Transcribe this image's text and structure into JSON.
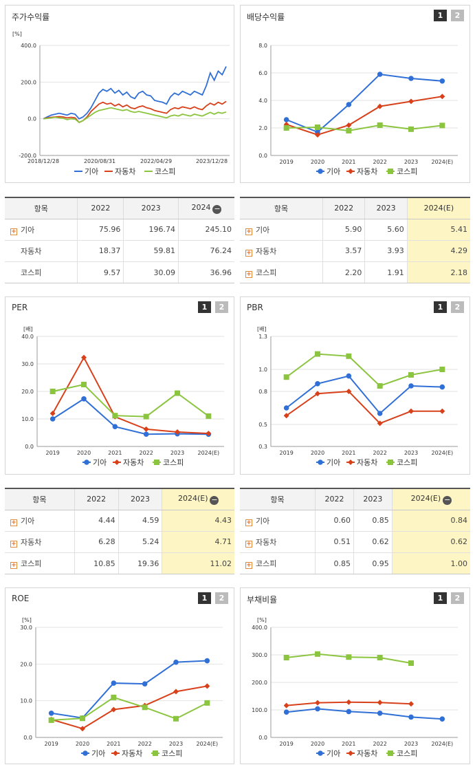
{
  "legend": {
    "kia": "기아",
    "auto": "자동차",
    "kospi": "코스피"
  },
  "colors": {
    "kia": "#2f6fd6",
    "auto": "#d8401a",
    "kospi": "#8bc53f"
  },
  "pager": [
    "1",
    "2"
  ],
  "stock_return": {
    "title": "주가수익률",
    "unit": "[%]",
    "yticks": [
      "400.0",
      "200.0",
      "0.0",
      "-200.0"
    ],
    "xticks": [
      "2018/12/28",
      "2020/08/31",
      "2022/04/29",
      "2023/12/28"
    ],
    "table": {
      "header": [
        "항목",
        "2022",
        "2023",
        "2024"
      ],
      "rows": [
        {
          "name": "기아",
          "plus": true,
          "values": [
            "75.96",
            "196.74",
            "245.10"
          ]
        },
        {
          "name": "자동차",
          "plus": false,
          "values": [
            "18.37",
            "59.81",
            "76.24"
          ]
        },
        {
          "name": "코스피",
          "plus": false,
          "values": [
            "9.57",
            "30.09",
            "36.96"
          ]
        }
      ]
    }
  },
  "dividend": {
    "title": "배당수익률",
    "table": {
      "header": [
        "항목",
        "2022",
        "2023",
        "2024(E)"
      ],
      "rows": [
        {
          "name": "기아",
          "values": [
            "5.90",
            "5.60",
            "5.41"
          ]
        },
        {
          "name": "자동차",
          "values": [
            "3.57",
            "3.93",
            "4.29"
          ]
        },
        {
          "name": "코스피",
          "values": [
            "2.20",
            "1.91",
            "2.18"
          ]
        }
      ]
    }
  },
  "per": {
    "title": "PER",
    "table": {
      "header": [
        "항목",
        "2022",
        "2023",
        "2024(E)"
      ],
      "rows": [
        {
          "name": "기아",
          "values": [
            "4.44",
            "4.59",
            "4.43"
          ]
        },
        {
          "name": "자동차",
          "values": [
            "6.28",
            "5.24",
            "4.71"
          ]
        },
        {
          "name": "코스피",
          "values": [
            "10.85",
            "19.36",
            "11.02"
          ]
        }
      ]
    }
  },
  "pbr": {
    "title": "PBR",
    "table": {
      "header": [
        "항목",
        "2022",
        "2023",
        "2024(E)"
      ],
      "rows": [
        {
          "name": "기아",
          "values": [
            "0.60",
            "0.85",
            "0.84"
          ]
        },
        {
          "name": "자동차",
          "values": [
            "0.51",
            "0.62",
            "0.62"
          ]
        },
        {
          "name": "코스피",
          "values": [
            "0.85",
            "0.95",
            "1.00"
          ]
        }
      ]
    }
  },
  "roe": {
    "title": "ROE"
  },
  "debt": {
    "title": "부채비율"
  },
  "chart_data": [
    {
      "id": "stock",
      "type": "line",
      "ylabel": "[%]",
      "ylim": [
        -200,
        400
      ],
      "yticks": [
        400,
        200,
        0,
        -200
      ],
      "ytick_labels": [
        "400.0",
        "200.0",
        "0.0",
        "-200.0"
      ],
      "x_labels": [
        "2018/12/28",
        "2020/08/31",
        "2022/04/29",
        "2023/12/28"
      ],
      "series": [
        {
          "name": "기아",
          "key": "kia",
          "values": [
            0,
            10,
            20,
            25,
            30,
            25,
            20,
            30,
            25,
            0,
            10,
            30,
            60,
            100,
            140,
            160,
            150,
            165,
            140,
            155,
            130,
            145,
            120,
            110,
            140,
            150,
            130,
            125,
            100,
            95,
            90,
            80,
            120,
            140,
            130,
            150,
            140,
            130,
            150,
            140,
            130,
            180,
            250,
            210,
            260,
            240,
            285
          ]
        },
        {
          "name": "자동차",
          "key": "auto",
          "values": [
            0,
            5,
            8,
            10,
            12,
            10,
            5,
            8,
            5,
            -20,
            -10,
            10,
            40,
            60,
            80,
            90,
            80,
            85,
            70,
            80,
            65,
            75,
            60,
            55,
            65,
            70,
            60,
            55,
            45,
            40,
            35,
            30,
            50,
            60,
            55,
            65,
            60,
            55,
            65,
            55,
            50,
            70,
            85,
            75,
            90,
            80,
            95
          ]
        },
        {
          "name": "코스피",
          "key": "kospi",
          "values": [
            0,
            2,
            5,
            8,
            5,
            3,
            -5,
            0,
            -2,
            -20,
            -10,
            5,
            20,
            35,
            45,
            50,
            55,
            60,
            55,
            50,
            45,
            50,
            40,
            35,
            40,
            35,
            30,
            25,
            20,
            15,
            10,
            5,
            15,
            20,
            15,
            25,
            20,
            15,
            25,
            20,
            15,
            25,
            35,
            25,
            35,
            30,
            37
          ]
        }
      ]
    },
    {
      "id": "dividend",
      "type": "line",
      "ylim": [
        0,
        8
      ],
      "yticks": [
        0,
        2,
        4,
        6,
        8
      ],
      "ytick_labels": [
        "0.0",
        "2.0",
        "4.0",
        "6.0",
        "8.0"
      ],
      "categories": [
        "2019",
        "2020",
        "2021",
        "2022",
        "2023",
        "2024(E)"
      ],
      "series": [
        {
          "name": "기아",
          "key": "kia",
          "marker": "circle",
          "values": [
            2.6,
            1.7,
            3.7,
            5.9,
            5.6,
            5.41
          ]
        },
        {
          "name": "자동차",
          "key": "auto",
          "marker": "diamond",
          "values": [
            2.25,
            1.5,
            2.2,
            3.57,
            3.93,
            4.29
          ]
        },
        {
          "name": "코스피",
          "key": "kospi",
          "marker": "square",
          "values": [
            2.0,
            2.05,
            1.8,
            2.2,
            1.91,
            2.18
          ]
        }
      ]
    },
    {
      "id": "per",
      "type": "line",
      "ylabel": "[배]",
      "ylim": [
        0,
        40
      ],
      "yticks": [
        0,
        10,
        20,
        30,
        40
      ],
      "ytick_labels": [
        "0.0",
        "10.0",
        "20.0",
        "30.0",
        "40.0"
      ],
      "categories": [
        "2019",
        "2020",
        "2021",
        "2022",
        "2023",
        "2024(E)"
      ],
      "series": [
        {
          "name": "기아",
          "key": "kia",
          "marker": "circle",
          "values": [
            10.0,
            17.3,
            7.2,
            4.44,
            4.59,
            4.43
          ]
        },
        {
          "name": "자동차",
          "key": "auto",
          "marker": "diamond",
          "values": [
            12.0,
            32.3,
            10.8,
            6.28,
            5.24,
            4.71
          ]
        },
        {
          "name": "코스피",
          "key": "kospi",
          "marker": "square",
          "values": [
            20.0,
            22.5,
            11.2,
            10.85,
            19.36,
            11.02
          ]
        }
      ]
    },
    {
      "id": "pbr",
      "type": "line",
      "ylabel": "[배]",
      "ylim": [
        0.3,
        1.3
      ],
      "yticks": [
        0.3,
        0.5,
        0.8,
        1.0,
        1.3
      ],
      "ytick_labels": [
        "0.3",
        "0.5",
        "0.8",
        "1.0",
        "1.3"
      ],
      "categories": [
        "2019",
        "2020",
        "2021",
        "2022",
        "2023",
        "2024(E)"
      ],
      "series": [
        {
          "name": "기아",
          "key": "kia",
          "marker": "circle",
          "values": [
            0.65,
            0.87,
            0.94,
            0.6,
            0.85,
            0.84
          ]
        },
        {
          "name": "자동차",
          "key": "auto",
          "marker": "diamond",
          "values": [
            0.58,
            0.78,
            0.8,
            0.51,
            0.62,
            0.62
          ]
        },
        {
          "name": "코스피",
          "key": "kospi",
          "marker": "square",
          "values": [
            0.93,
            1.14,
            1.12,
            0.85,
            0.95,
            1.0
          ]
        }
      ]
    },
    {
      "id": "roe",
      "type": "line",
      "ylabel": "[%]",
      "ylim": [
        0,
        30
      ],
      "yticks": [
        0,
        10,
        20,
        30
      ],
      "ytick_labels": [
        "0.0",
        "10.0",
        "20.0",
        "30.0"
      ],
      "categories": [
        "2019",
        "2020",
        "2021",
        "2022",
        "2023",
        "2024(E)"
      ],
      "series": [
        {
          "name": "기아",
          "key": "kia",
          "marker": "circle",
          "values": [
            6.6,
            5.3,
            14.8,
            14.6,
            20.5,
            20.9
          ]
        },
        {
          "name": "자동차",
          "key": "auto",
          "marker": "diamond",
          "values": [
            4.9,
            2.4,
            7.6,
            8.7,
            12.5,
            14.0
          ]
        },
        {
          "name": "코스피",
          "key": "kospi",
          "marker": "square",
          "values": [
            4.7,
            5.2,
            10.9,
            8.2,
            5.1,
            9.4
          ]
        }
      ]
    },
    {
      "id": "debt",
      "type": "line",
      "ylabel": "[%]",
      "ylim": [
        0,
        400
      ],
      "yticks": [
        0,
        100,
        200,
        300,
        400
      ],
      "ytick_labels": [
        "0.0",
        "100.0",
        "200.0",
        "300.0",
        "400.0"
      ],
      "categories": [
        "2019",
        "2020",
        "2021",
        "2022",
        "2023",
        "2024(E)"
      ],
      "series": [
        {
          "name": "기아",
          "key": "kia",
          "marker": "circle",
          "values": [
            92,
            104,
            94,
            88,
            74,
            67
          ]
        },
        {
          "name": "자동차",
          "key": "auto",
          "marker": "diamond",
          "values": [
            116,
            126,
            128,
            127,
            122,
            null
          ]
        },
        {
          "name": "코스피",
          "key": "kospi",
          "marker": "square",
          "values": [
            290,
            303,
            292,
            290,
            270,
            null
          ]
        }
      ]
    }
  ]
}
